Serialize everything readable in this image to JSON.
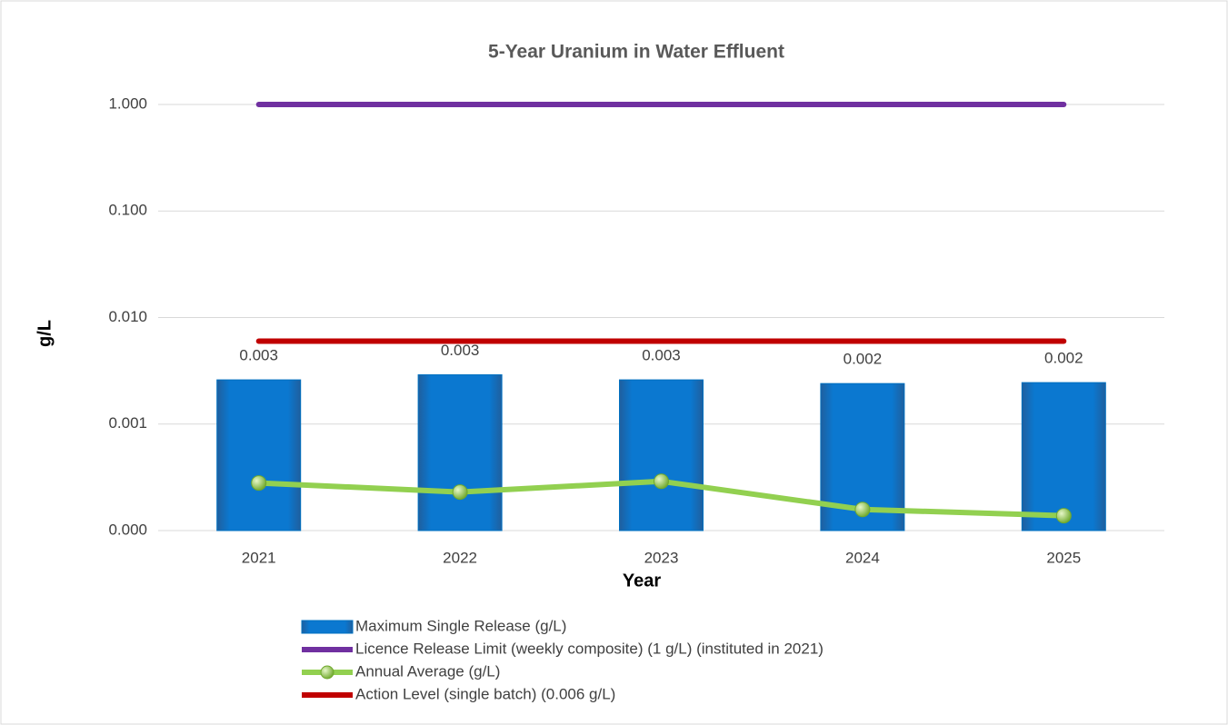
{
  "chart_data": {
    "type": "bar",
    "title": "5-Year Uranium in Water Effluent",
    "x_label": "Year",
    "y_label": "g/L",
    "categories": [
      "2021",
      "2022",
      "2023",
      "2024",
      "2025"
    ],
    "log_scale": true,
    "grid": true,
    "legend": "bottom",
    "ylim": [
      0.0001,
      1
    ],
    "yticks": [
      {
        "value": 1,
        "label": "1.000"
      },
      {
        "value": 0.1,
        "label": "0.100"
      },
      {
        "value": 0.01,
        "label": "0.010"
      },
      {
        "value": 0.001,
        "label": "0.001"
      },
      {
        "value": 0.0001,
        "label": "0.000"
      }
    ],
    "series": [
      {
        "name": "Maximum Single Release (g/L)",
        "type": "bar",
        "color": "#0070c0",
        "values": [
          0.0026,
          0.0029,
          0.0026,
          0.0024,
          0.00245
        ],
        "value_labels": [
          "0.003",
          "0.003",
          "0.003",
          "0.002",
          "0.002"
        ]
      },
      {
        "name": "Licence Release Limit (weekly composite) (1 g/L) (instituted in 2021)",
        "type": "line",
        "color": "#7030a0",
        "values": [
          1,
          1,
          1,
          1,
          1
        ]
      },
      {
        "name": "Annual Average (g/L)",
        "type": "line",
        "markers": true,
        "color": "#92d050",
        "values": [
          0.00028,
          0.00023,
          0.00029,
          0.000158,
          0.000138
        ]
      },
      {
        "name": "Action Level (single batch) (0.006 g/L)",
        "type": "line",
        "color": "#c00000",
        "values": [
          0.006,
          0.006,
          0.006,
          0.006,
          0.006
        ]
      }
    ]
  }
}
